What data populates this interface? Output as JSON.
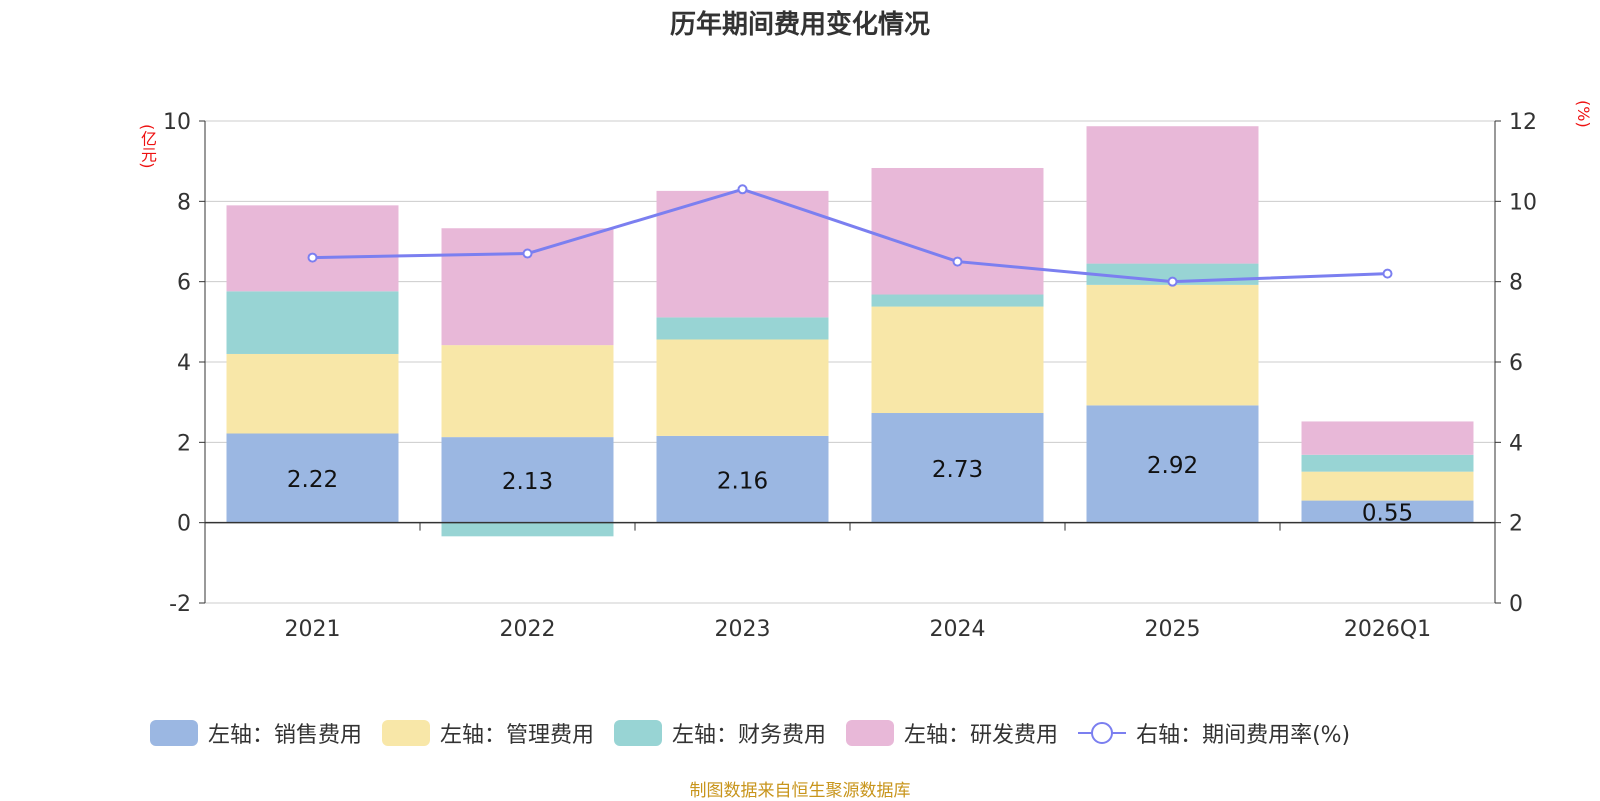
{
  "chart_data": {
    "type": "bar",
    "stacked": true,
    "title": "历年期间费用变化情况",
    "categories": [
      "2021",
      "2022",
      "2023",
      "2024",
      "2025",
      "2026Q1"
    ],
    "y_left": {
      "unit": "(亿元)",
      "ylim": [
        -2,
        10
      ],
      "ticks": [
        "-2",
        "0",
        "2",
        "4",
        "6",
        "8",
        "10"
      ]
    },
    "y_right": {
      "unit": "(%)",
      "ylim": [
        0,
        12
      ],
      "ticks": [
        "0",
        "2",
        "4",
        "6",
        "8",
        "10",
        "12"
      ]
    },
    "series": [
      {
        "name": "左轴：销售费用",
        "axis": "left",
        "color": "#9bb7e2",
        "values": [
          2.22,
          2.13,
          2.16,
          2.73,
          2.92,
          0.55
        ],
        "labels": [
          "2.22",
          "2.13",
          "2.16",
          "2.73",
          "2.92",
          "0.55"
        ]
      },
      {
        "name": "左轴：管理费用",
        "axis": "left",
        "color": "#f8e7a8",
        "values": [
          1.98,
          2.29,
          2.4,
          2.65,
          3.0,
          0.72
        ]
      },
      {
        "name": "左轴：财务费用",
        "axis": "left",
        "color": "#98d4d4",
        "values": [
          1.56,
          -0.34,
          0.55,
          0.3,
          0.53,
          0.42
        ]
      },
      {
        "name": "左轴：研发费用",
        "axis": "left",
        "color": "#e8b8d8",
        "values": [
          2.14,
          2.91,
          3.15,
          3.15,
          3.42,
          0.83
        ]
      },
      {
        "name": "右轴：期间费用率(%)",
        "axis": "right",
        "type": "line",
        "color": "#7b7ff0",
        "values": [
          8.6,
          8.7,
          10.3,
          8.5,
          8.0,
          8.2
        ]
      }
    ]
  },
  "source": "制图数据来自恒生聚源数据库"
}
